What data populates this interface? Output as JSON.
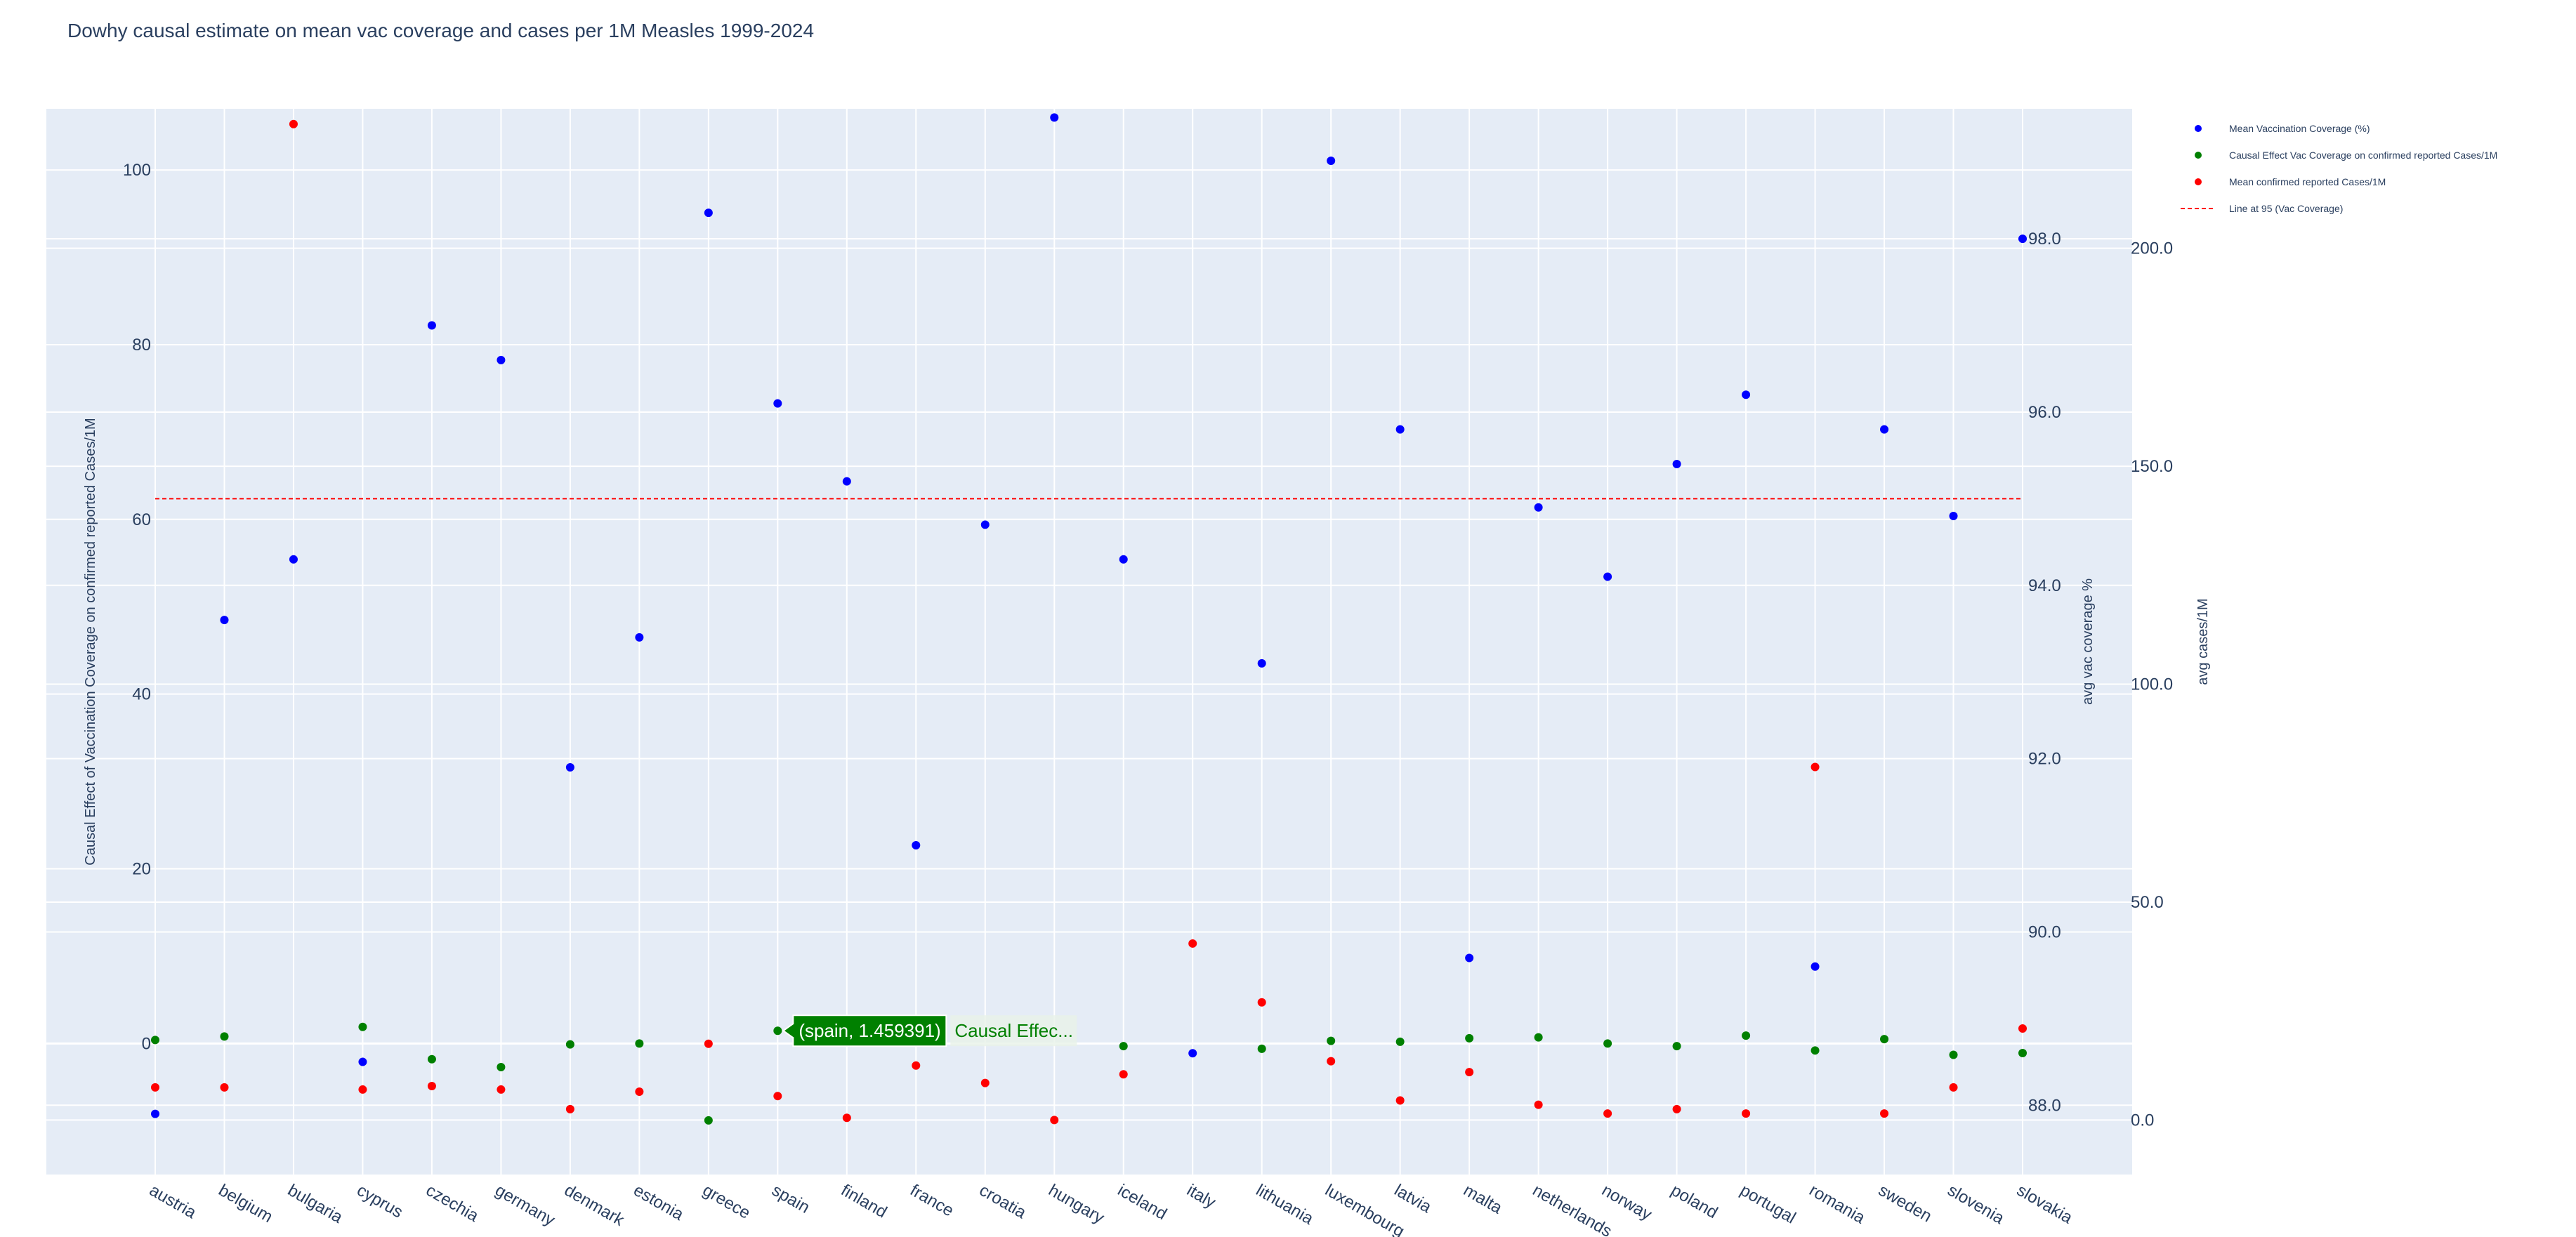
{
  "chart_data": {
    "type": "scatter",
    "title": "Dowhy causal estimate on mean vac coverage and cases per 1M Measles 1999-2024",
    "categories": [
      "austria",
      "belgium",
      "bulgaria",
      "cyprus",
      "czechia",
      "germany",
      "denmark",
      "estonia",
      "greece",
      "spain",
      "finland",
      "france",
      "croatia",
      "hungary",
      "iceland",
      "italy",
      "lithuania",
      "luxembourg",
      "latvia",
      "malta",
      "netherlands",
      "norway",
      "poland",
      "portugal",
      "romania",
      "sweden",
      "slovenia",
      "slovakia"
    ],
    "y_axis_left": {
      "label": "Causal Effect of Vaccination Coverage on confirmed reported Cases/1M",
      "ticks": [
        0,
        20,
        40,
        60,
        80,
        100
      ],
      "range": [
        -15,
        107
      ]
    },
    "y_axis_right_1": {
      "label": "avg vac coverage %",
      "ticks": [
        "88.0",
        "90.0",
        "92.0",
        "94.0",
        "96.0",
        "98.0"
      ],
      "range": [
        87.2,
        99.5
      ]
    },
    "y_axis_right_2": {
      "label": "avg cases/1M",
      "ticks": [
        "0.0",
        "50.0",
        "100.0",
        "150.0",
        "200.0"
      ],
      "range": [
        -12.5,
        232
      ]
    },
    "grid": true,
    "legend_position": "top-right",
    "series": [
      {
        "name": "Mean Vaccination Coverage (%)",
        "color": "#0000ff",
        "axis": "y2",
        "values": [
          87.9,
          93.6,
          94.3,
          88.5,
          97.0,
          96.6,
          91.9,
          93.4,
          98.3,
          96.1,
          95.2,
          91.0,
          94.7,
          99.4,
          94.3,
          88.6,
          93.1,
          98.9,
          95.8,
          89.7,
          94.9,
          94.1,
          95.4,
          96.2,
          89.6,
          95.8,
          94.8,
          98.0
        ]
      },
      {
        "name": "Causal Effect Vac Coverage on confirmed reported Cases/1M",
        "color": "#008000",
        "axis": "y",
        "values": [
          0.4,
          0.8,
          null,
          1.9,
          -1.8,
          -2.7,
          -0.1,
          0.0,
          -8.8,
          1.459391,
          null,
          null,
          null,
          null,
          -0.3,
          null,
          -0.6,
          0.3,
          0.2,
          0.6,
          0.7,
          0.0,
          -0.3,
          0.9,
          -0.8,
          0.5,
          -1.3,
          -1.1
        ]
      },
      {
        "name": "Mean confirmed reported Cases/1M",
        "color": "#ff0000",
        "axis": "y3",
        "values": [
          7.5,
          7.5,
          228.5,
          7.0,
          7.8,
          7.0,
          2.5,
          6.5,
          17.5,
          5.5,
          0.5,
          12.5,
          8.5,
          0.0,
          10.5,
          40.5,
          27.0,
          13.5,
          4.5,
          11.0,
          3.5,
          1.5,
          2.5,
          1.5,
          81.0,
          1.5,
          7.5,
          21.0
        ]
      }
    ],
    "reference_line": {
      "name": "Line at 95 (Vac Coverage)",
      "value": 95,
      "axis": "y2",
      "color": "#ff0000",
      "dash": "dashed"
    },
    "hover_label": {
      "category": "spain",
      "text": "(spain, 1.459391)",
      "trace_text": "Causal Effec..."
    }
  }
}
